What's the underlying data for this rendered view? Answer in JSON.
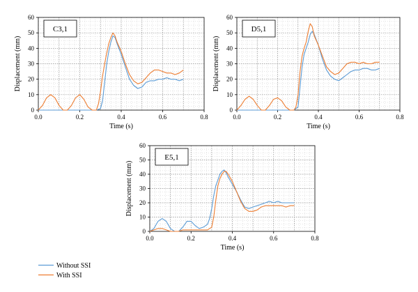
{
  "chart_data": [
    {
      "type": "line",
      "panel_label": "C3,1",
      "xlabel": "Time (s)",
      "ylabel": "Displacement (mm)",
      "xlim": [
        0,
        0.8
      ],
      "ylim": [
        0,
        60
      ],
      "xticks": [
        "0.0",
        "0.2",
        "0.4",
        "0.6",
        "0.8"
      ],
      "yticks": [
        "0",
        "10",
        "20",
        "30",
        "40",
        "50",
        "60"
      ],
      "grid": "dotted",
      "series": [
        {
          "name": "Without SSI",
          "color": "#5b9bd5",
          "points": [
            [
              0.0,
              0
            ],
            [
              0.05,
              0
            ],
            [
              0.1,
              0
            ],
            [
              0.15,
              0
            ],
            [
              0.2,
              0
            ],
            [
              0.25,
              0
            ],
            [
              0.28,
              0
            ],
            [
              0.3,
              1
            ],
            [
              0.31,
              6
            ],
            [
              0.32,
              18
            ],
            [
              0.33,
              30
            ],
            [
              0.34,
              38
            ],
            [
              0.35,
              44
            ],
            [
              0.36,
              48
            ],
            [
              0.37,
              47
            ],
            [
              0.38,
              43
            ],
            [
              0.4,
              36
            ],
            [
              0.42,
              28
            ],
            [
              0.44,
              20
            ],
            [
              0.46,
              16
            ],
            [
              0.48,
              14
            ],
            [
              0.5,
              15
            ],
            [
              0.52,
              18
            ],
            [
              0.54,
              19
            ],
            [
              0.56,
              19
            ],
            [
              0.58,
              20
            ],
            [
              0.6,
              20
            ],
            [
              0.62,
              21
            ],
            [
              0.64,
              20
            ],
            [
              0.66,
              20
            ],
            [
              0.68,
              19
            ],
            [
              0.7,
              20
            ]
          ]
        },
        {
          "name": "With SSI",
          "color": "#ed7d31",
          "points": [
            [
              0.0,
              0
            ],
            [
              0.02,
              3
            ],
            [
              0.04,
              8
            ],
            [
              0.06,
              10
            ],
            [
              0.08,
              8
            ],
            [
              0.1,
              3
            ],
            [
              0.12,
              0
            ],
            [
              0.14,
              0
            ],
            [
              0.16,
              3
            ],
            [
              0.18,
              8
            ],
            [
              0.2,
              10
            ],
            [
              0.22,
              7
            ],
            [
              0.24,
              2
            ],
            [
              0.26,
              0
            ],
            [
              0.28,
              0
            ],
            [
              0.29,
              4
            ],
            [
              0.3,
              12
            ],
            [
              0.31,
              22
            ],
            [
              0.32,
              30
            ],
            [
              0.33,
              37
            ],
            [
              0.34,
              43
            ],
            [
              0.35,
              47
            ],
            [
              0.36,
              50
            ],
            [
              0.37,
              48
            ],
            [
              0.38,
              44
            ],
            [
              0.4,
              38
            ],
            [
              0.42,
              30
            ],
            [
              0.44,
              23
            ],
            [
              0.46,
              19
            ],
            [
              0.48,
              17
            ],
            [
              0.5,
              18
            ],
            [
              0.52,
              21
            ],
            [
              0.54,
              24
            ],
            [
              0.56,
              26
            ],
            [
              0.58,
              26
            ],
            [
              0.6,
              25
            ],
            [
              0.62,
              24
            ],
            [
              0.64,
              24
            ],
            [
              0.66,
              23
            ],
            [
              0.68,
              24
            ],
            [
              0.7,
              26
            ]
          ]
        }
      ]
    },
    {
      "type": "line",
      "panel_label": "D5,1",
      "xlabel": "Time (s)",
      "ylabel": "Displacement (mm)",
      "xlim": [
        0,
        0.8
      ],
      "ylim": [
        0,
        60
      ],
      "xticks": [
        "0.0",
        "0.2",
        "0.4",
        "0.6",
        "0.8"
      ],
      "yticks": [
        "0",
        "10",
        "20",
        "30",
        "40",
        "50",
        "60"
      ],
      "grid": "dotted",
      "series": [
        {
          "name": "Without SSI",
          "color": "#5b9bd5",
          "points": [
            [
              0.0,
              0
            ],
            [
              0.1,
              0
            ],
            [
              0.2,
              0
            ],
            [
              0.28,
              0
            ],
            [
              0.3,
              2
            ],
            [
              0.31,
              15
            ],
            [
              0.32,
              28
            ],
            [
              0.33,
              36
            ],
            [
              0.34,
              40
            ],
            [
              0.35,
              44
            ],
            [
              0.36,
              49
            ],
            [
              0.37,
              51
            ],
            [
              0.38,
              49
            ],
            [
              0.4,
              42
            ],
            [
              0.42,
              33
            ],
            [
              0.44,
              26
            ],
            [
              0.46,
              22
            ],
            [
              0.48,
              20
            ],
            [
              0.5,
              19
            ],
            [
              0.52,
              21
            ],
            [
              0.54,
              23
            ],
            [
              0.56,
              25
            ],
            [
              0.58,
              26
            ],
            [
              0.6,
              26
            ],
            [
              0.62,
              27
            ],
            [
              0.64,
              27
            ],
            [
              0.66,
              26
            ],
            [
              0.68,
              26
            ],
            [
              0.7,
              27
            ]
          ]
        },
        {
          "name": "With SSI",
          "color": "#ed7d31",
          "points": [
            [
              0.0,
              0
            ],
            [
              0.02,
              3
            ],
            [
              0.04,
              7
            ],
            [
              0.06,
              9
            ],
            [
              0.08,
              7
            ],
            [
              0.1,
              3
            ],
            [
              0.12,
              0
            ],
            [
              0.14,
              0
            ],
            [
              0.16,
              3
            ],
            [
              0.18,
              7
            ],
            [
              0.2,
              8
            ],
            [
              0.22,
              6
            ],
            [
              0.24,
              2
            ],
            [
              0.26,
              0
            ],
            [
              0.28,
              0
            ],
            [
              0.29,
              2
            ],
            [
              0.3,
              10
            ],
            [
              0.31,
              25
            ],
            [
              0.32,
              35
            ],
            [
              0.33,
              40
            ],
            [
              0.34,
              44
            ],
            [
              0.35,
              51
            ],
            [
              0.36,
              56
            ],
            [
              0.37,
              54
            ],
            [
              0.38,
              48
            ],
            [
              0.4,
              42
            ],
            [
              0.42,
              35
            ],
            [
              0.44,
              28
            ],
            [
              0.46,
              25
            ],
            [
              0.48,
              23
            ],
            [
              0.5,
              24
            ],
            [
              0.52,
              27
            ],
            [
              0.54,
              30
            ],
            [
              0.56,
              31
            ],
            [
              0.58,
              31
            ],
            [
              0.6,
              30
            ],
            [
              0.62,
              31
            ],
            [
              0.64,
              30
            ],
            [
              0.66,
              30
            ],
            [
              0.68,
              31
            ],
            [
              0.7,
              31
            ]
          ]
        }
      ]
    },
    {
      "type": "line",
      "panel_label": "E5,1",
      "xlabel": "Time (s)",
      "ylabel": "Displacement (mm)",
      "xlim": [
        0,
        0.8
      ],
      "ylim": [
        0,
        60
      ],
      "xticks": [
        "0.0",
        "0.2",
        "0.4",
        "0.6",
        "0.8"
      ],
      "yticks": [
        "0",
        "10",
        "20",
        "30",
        "40",
        "50",
        "60"
      ],
      "grid": "dotted",
      "series": [
        {
          "name": "Without SSI",
          "color": "#5b9bd5",
          "points": [
            [
              0.0,
              0
            ],
            [
              0.02,
              2
            ],
            [
              0.04,
              7
            ],
            [
              0.06,
              9
            ],
            [
              0.08,
              7
            ],
            [
              0.1,
              2
            ],
            [
              0.12,
              0
            ],
            [
              0.14,
              0
            ],
            [
              0.16,
              3
            ],
            [
              0.18,
              7
            ],
            [
              0.2,
              7
            ],
            [
              0.22,
              4
            ],
            [
              0.24,
              2
            ],
            [
              0.26,
              3
            ],
            [
              0.28,
              5
            ],
            [
              0.29,
              9
            ],
            [
              0.3,
              16
            ],
            [
              0.31,
              25
            ],
            [
              0.32,
              32
            ],
            [
              0.33,
              36
            ],
            [
              0.34,
              40
            ],
            [
              0.35,
              42
            ],
            [
              0.36,
              43
            ],
            [
              0.37,
              41
            ],
            [
              0.38,
              38
            ],
            [
              0.4,
              33
            ],
            [
              0.42,
              28
            ],
            [
              0.44,
              22
            ],
            [
              0.46,
              17
            ],
            [
              0.48,
              16
            ],
            [
              0.5,
              17
            ],
            [
              0.52,
              18
            ],
            [
              0.54,
              19
            ],
            [
              0.56,
              20
            ],
            [
              0.58,
              21
            ],
            [
              0.6,
              20
            ],
            [
              0.62,
              21
            ],
            [
              0.64,
              20
            ],
            [
              0.66,
              20
            ],
            [
              0.68,
              20
            ],
            [
              0.7,
              20
            ]
          ]
        },
        {
          "name": "With SSI",
          "color": "#ed7d31",
          "points": [
            [
              0.0,
              0
            ],
            [
              0.02,
              1
            ],
            [
              0.04,
              2
            ],
            [
              0.06,
              2
            ],
            [
              0.08,
              1
            ],
            [
              0.1,
              0
            ],
            [
              0.12,
              0
            ],
            [
              0.14,
              0
            ],
            [
              0.16,
              1
            ],
            [
              0.18,
              1
            ],
            [
              0.2,
              1
            ],
            [
              0.22,
              1
            ],
            [
              0.24,
              1
            ],
            [
              0.26,
              1
            ],
            [
              0.28,
              1
            ],
            [
              0.3,
              3
            ],
            [
              0.31,
              10
            ],
            [
              0.32,
              22
            ],
            [
              0.33,
              32
            ],
            [
              0.34,
              37
            ],
            [
              0.35,
              40
            ],
            [
              0.36,
              42
            ],
            [
              0.37,
              42
            ],
            [
              0.38,
              40
            ],
            [
              0.4,
              35
            ],
            [
              0.42,
              28
            ],
            [
              0.44,
              21
            ],
            [
              0.46,
              16
            ],
            [
              0.48,
              14
            ],
            [
              0.5,
              14
            ],
            [
              0.52,
              15
            ],
            [
              0.54,
              17
            ],
            [
              0.56,
              18
            ],
            [
              0.58,
              18
            ],
            [
              0.6,
              18
            ],
            [
              0.62,
              18
            ],
            [
              0.64,
              18
            ],
            [
              0.66,
              17
            ],
            [
              0.68,
              18
            ],
            [
              0.7,
              18
            ]
          ]
        }
      ]
    }
  ],
  "legend": [
    {
      "label": "Without SSI",
      "color": "#5b9bd5"
    },
    {
      "label": "With SSI",
      "color": "#ed7d31"
    }
  ]
}
